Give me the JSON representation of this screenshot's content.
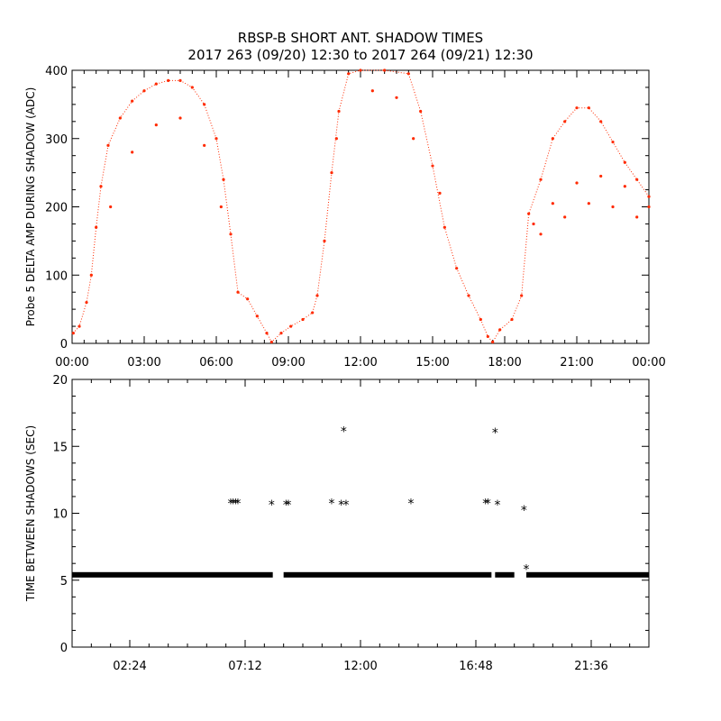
{
  "page": {
    "title_line1": "RBSP-B SHORT ANT. SHADOW TIMES",
    "title_line2": "2017 263 (09/20) 12:30 to 2017 264 (09/21) 12:30"
  },
  "chart_data": [
    {
      "type": "scatter",
      "title": "",
      "ylabel": "Probe 5 DELTA AMP DURING SHADOW (ADC)",
      "xlabel": "",
      "x_unit": "hours",
      "xlim": [
        0,
        24
      ],
      "ylim": [
        0,
        400
      ],
      "x_tick_labels": [
        "00:00",
        "03:00",
        "06:00",
        "09:00",
        "12:00",
        "15:00",
        "18:00",
        "21:00",
        "00:00"
      ],
      "y_tick_labels": [
        "0",
        "100",
        "200",
        "300",
        "400"
      ],
      "series": [
        {
          "color": "#ff2a00",
          "points": [
            [
              0.05,
              15
            ],
            [
              0.3,
              25
            ],
            [
              0.6,
              60
            ],
            [
              0.8,
              100
            ],
            [
              1.0,
              170
            ],
            [
              1.2,
              230
            ],
            [
              1.5,
              290
            ],
            [
              2.0,
              330
            ],
            [
              2.5,
              355
            ],
            [
              3.0,
              370
            ],
            [
              3.5,
              380
            ],
            [
              4.0,
              385
            ],
            [
              4.5,
              385
            ],
            [
              5.0,
              375
            ],
            [
              5.5,
              350
            ],
            [
              6.0,
              300
            ],
            [
              6.3,
              240
            ],
            [
              6.6,
              160
            ],
            [
              6.9,
              75
            ],
            [
              7.3,
              65
            ],
            [
              7.7,
              40
            ],
            [
              8.1,
              15
            ],
            [
              8.3,
              2
            ],
            [
              8.7,
              15
            ],
            [
              9.1,
              25
            ],
            [
              9.6,
              35
            ],
            [
              10.0,
              45
            ],
            [
              10.2,
              70
            ],
            [
              10.5,
              150
            ],
            [
              10.8,
              250
            ],
            [
              11.1,
              340
            ],
            [
              11.5,
              395
            ],
            [
              12.0,
              400
            ],
            [
              13.0,
              400
            ],
            [
              14.0,
              395
            ],
            [
              14.5,
              340
            ],
            [
              15.0,
              260
            ],
            [
              15.5,
              170
            ],
            [
              16.0,
              110
            ],
            [
              16.5,
              70
            ],
            [
              17.0,
              35
            ],
            [
              17.3,
              10
            ],
            [
              17.5,
              2
            ],
            [
              17.8,
              20
            ],
            [
              18.3,
              35
            ],
            [
              18.7,
              70
            ],
            [
              19.0,
              190
            ],
            [
              19.5,
              240
            ],
            [
              20.0,
              300
            ],
            [
              20.5,
              325
            ],
            [
              21.0,
              345
            ],
            [
              21.5,
              345
            ],
            [
              22.0,
              325
            ],
            [
              22.5,
              295
            ],
            [
              23.0,
              265
            ],
            [
              23.5,
              240
            ],
            [
              24.0,
              215
            ],
            [
              19.2,
              175
            ],
            [
              20.0,
              205
            ],
            [
              21.0,
              235
            ],
            [
              22.0,
              245
            ],
            [
              23.0,
              230
            ],
            [
              24.0,
              200
            ],
            [
              19.5,
              160
            ],
            [
              20.5,
              185
            ],
            [
              21.5,
              205
            ],
            [
              22.5,
              200
            ],
            [
              23.5,
              185
            ],
            [
              1.6,
              200
            ],
            [
              2.5,
              280
            ],
            [
              3.5,
              320
            ],
            [
              4.5,
              330
            ],
            [
              5.5,
              290
            ],
            [
              6.2,
              200
            ],
            [
              11.0,
              300
            ],
            [
              12.5,
              370
            ],
            [
              13.5,
              360
            ],
            [
              14.2,
              300
            ],
            [
              15.3,
              220
            ]
          ]
        }
      ]
    },
    {
      "type": "scatter",
      "title": "",
      "ylabel": "TIME BETWEEN SHADOWS (SEC)",
      "xlabel": "",
      "x_unit": "hours",
      "xlim": [
        0,
        24
      ],
      "ylim": [
        0,
        20
      ],
      "x_tick_labels": [
        "02:24",
        "07:12",
        "12:00",
        "16:48",
        "21:36"
      ],
      "y_tick_labels": [
        "0",
        "5",
        "10",
        "15",
        "20"
      ],
      "series": [
        {
          "color": "#000000",
          "baseline_value": 5.4,
          "baseline_range": [
            0,
            24
          ],
          "baseline_gaps": [
            [
              8.35,
              8.8
            ],
            [
              17.45,
              17.6
            ],
            [
              18.4,
              18.9
            ]
          ],
          "points": [
            [
              6.6,
              10.8
            ],
            [
              6.7,
              10.8
            ],
            [
              6.8,
              10.8
            ],
            [
              6.9,
              10.8
            ],
            [
              8.3,
              10.7
            ],
            [
              8.9,
              10.7
            ],
            [
              9.0,
              10.7
            ],
            [
              10.8,
              10.8
            ],
            [
              11.2,
              10.7
            ],
            [
              11.4,
              10.7
            ],
            [
              11.3,
              16.2
            ],
            [
              14.1,
              10.8
            ],
            [
              17.2,
              10.8
            ],
            [
              17.3,
              10.8
            ],
            [
              17.7,
              10.7
            ],
            [
              17.6,
              16.1
            ],
            [
              18.8,
              10.3
            ],
            [
              18.9,
              5.9
            ]
          ]
        }
      ]
    }
  ]
}
